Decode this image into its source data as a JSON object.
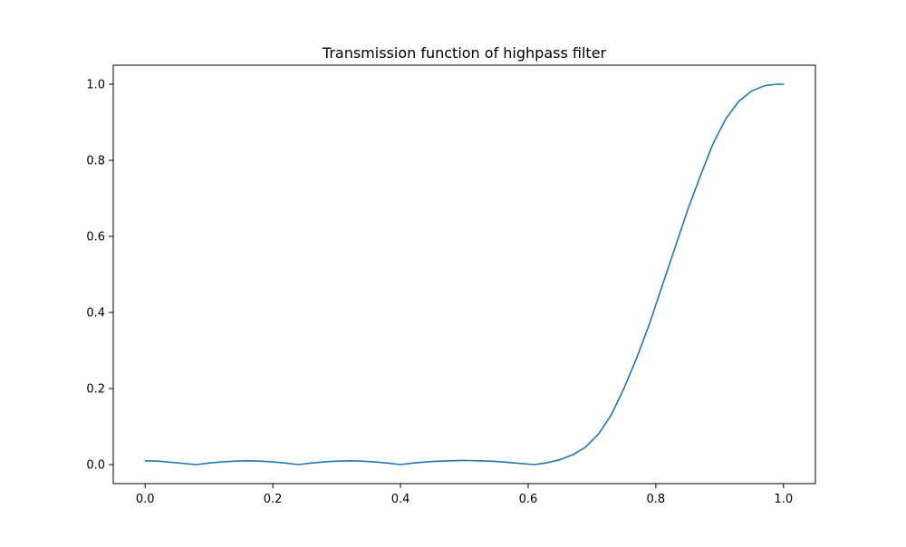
{
  "chart_data": {
    "type": "line",
    "title": "Transmission function of highpass filter",
    "xlabel": "",
    "ylabel": "",
    "xlim": [
      -0.05,
      1.05
    ],
    "ylim": [
      -0.05,
      1.05
    ],
    "xticks": [
      0.0,
      0.2,
      0.4,
      0.6,
      0.8,
      1.0
    ],
    "xtick_labels": [
      "0.0",
      "0.2",
      "0.4",
      "0.6",
      "0.8",
      "1.0"
    ],
    "yticks": [
      0.0,
      0.2,
      0.4,
      0.6,
      0.8,
      1.0
    ],
    "ytick_labels": [
      "0.0",
      "0.2",
      "0.4",
      "0.6",
      "0.8",
      "1.0"
    ],
    "grid": false,
    "series": [
      {
        "color": "#1f77b4",
        "x": [
          0.0,
          0.02,
          0.04,
          0.06,
          0.08,
          0.1,
          0.12,
          0.14,
          0.16,
          0.18,
          0.2,
          0.22,
          0.24,
          0.26,
          0.28,
          0.3,
          0.32,
          0.34,
          0.36,
          0.38,
          0.4,
          0.42,
          0.44,
          0.46,
          0.48,
          0.5,
          0.52,
          0.54,
          0.56,
          0.58,
          0.61,
          0.63,
          0.65,
          0.67,
          0.69,
          0.71,
          0.73,
          0.75,
          0.77,
          0.79,
          0.81,
          0.83,
          0.85,
          0.87,
          0.89,
          0.91,
          0.93,
          0.95,
          0.97,
          0.99,
          1.0
        ],
        "y": [
          0.01,
          0.009,
          0.006,
          0.003,
          0.0,
          0.004,
          0.007,
          0.009,
          0.01,
          0.009,
          0.007,
          0.004,
          0.0,
          0.004,
          0.007,
          0.009,
          0.01,
          0.009,
          0.007,
          0.004,
          0.0,
          0.004,
          0.007,
          0.009,
          0.01,
          0.011,
          0.01,
          0.009,
          0.007,
          0.004,
          0.0,
          0.005,
          0.013,
          0.026,
          0.046,
          0.08,
          0.13,
          0.2,
          0.28,
          0.37,
          0.47,
          0.57,
          0.67,
          0.76,
          0.845,
          0.91,
          0.955,
          0.982,
          0.996,
          1.0,
          1.0
        ]
      }
    ]
  }
}
